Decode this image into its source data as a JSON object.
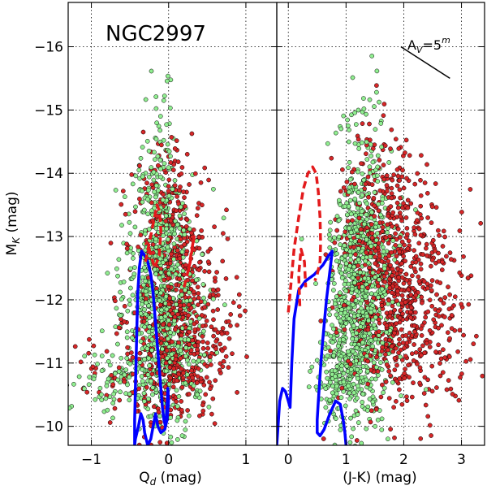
{
  "chart_data": [
    {
      "type": "scatter",
      "title": "NGC2997",
      "xlabel": "Q",
      "xlabel_sub": "d",
      "xlabel_unit": " (mag)",
      "ylabel": "M",
      "ylabel_sub": "K",
      "ylabel_unit": " (mag)",
      "xlim": [
        -1.3,
        1.4
      ],
      "ylim": [
        -9.7,
        -16.7
      ],
      "x_ticks": [
        -1,
        0,
        1
      ],
      "x_tick_labels": [
        "−1",
        "0",
        "1"
      ],
      "y_ticks": [
        -10,
        -11,
        -12,
        -13,
        -14,
        -15,
        -16
      ],
      "y_tick_labels": [
        "−10",
        "−11",
        "−12",
        "−13",
        "−14",
        "−15",
        "−16"
      ],
      "grid": true,
      "grid_style": "dotted",
      "series": [
        {
          "color": "#90ee90",
          "marker": "circle",
          "clusters": [
            {
              "cx": -0.05,
              "cy": -11.7,
              "sx": 0.28,
              "sy": 0.8,
              "n": 500
            },
            {
              "cx": -0.12,
              "cy": -12.8,
              "sx": 0.18,
              "sy": 0.7,
              "n": 230
            },
            {
              "cx": -0.15,
              "cy": -14.0,
              "sx": 0.12,
              "sy": 0.8,
              "n": 80
            },
            {
              "cx": -0.45,
              "cy": -10.8,
              "sx": 0.4,
              "sy": 0.35,
              "n": 130
            }
          ]
        },
        {
          "color": "#d62728",
          "marker": "circle",
          "clusters": [
            {
              "cx": 0.1,
              "cy": -11.5,
              "sx": 0.3,
              "sy": 0.8,
              "n": 430
            },
            {
              "cx": 0.05,
              "cy": -12.8,
              "sx": 0.25,
              "sy": 0.6,
              "n": 180
            },
            {
              "cx": 0.0,
              "cy": -13.8,
              "sx": 0.2,
              "sy": 0.6,
              "n": 60
            },
            {
              "cx": -0.4,
              "cy": -10.8,
              "sx": 0.4,
              "sy": 0.35,
              "n": 80
            },
            {
              "cx": 0.5,
              "cy": -11.2,
              "sx": 0.3,
              "sy": 0.4,
              "n": 50
            }
          ]
        }
      ],
      "lines": [
        {
          "color": "#0000ff",
          "style": "solid",
          "x": [
            -0.44,
            -0.44,
            -0.43,
            -0.42,
            -0.41,
            -0.4,
            -0.38,
            -0.35,
            -0.31,
            -0.27,
            -0.23,
            -0.2,
            -0.18,
            -0.16,
            -0.14,
            -0.12,
            -0.1,
            -0.08,
            -0.06,
            -0.04,
            -0.02,
            -0.01,
            0.0,
            -0.02,
            -0.05,
            -0.1,
            -0.14,
            -0.17,
            -0.2,
            -0.23,
            -0.27,
            -0.31,
            -0.33,
            -0.36,
            -0.39,
            -0.41,
            -0.43,
            -0.44
          ],
          "y": [
            -9.7,
            -10.1,
            -10.6,
            -11.1,
            -11.6,
            -12.1,
            -12.5,
            -12.77,
            -12.7,
            -12.6,
            -12.4,
            -12.1,
            -11.8,
            -11.5,
            -11.2,
            -10.9,
            -10.6,
            -10.3,
            -10.1,
            -10.0,
            -10.3,
            -10.6,
            -10.4,
            -10.1,
            -9.95,
            -9.9,
            -10.0,
            -10.2,
            -10.0,
            -9.8,
            -9.7,
            -9.9,
            -10.1,
            -10.2,
            -10.0,
            -9.9,
            -9.8,
            -9.7
          ]
        },
        {
          "color": "#e31a1c",
          "style": "dashed",
          "x": [
            -0.3,
            -0.25,
            -0.2,
            -0.15,
            -0.12,
            -0.1,
            -0.12,
            -0.18,
            -0.25,
            -0.3
          ],
          "y": [
            -12.6,
            -12.9,
            -13.2,
            -13.5,
            -13.4,
            -13.1,
            -12.7,
            -12.5,
            -12.8,
            -12.9
          ]
        },
        {
          "color": "#e31a1c",
          "style": "dashed",
          "x": [
            0.2,
            0.28,
            0.33,
            0.3,
            0.25
          ],
          "y": [
            -12.2,
            -12.6,
            -13.0,
            -12.8,
            -12.4
          ]
        }
      ]
    },
    {
      "type": "scatter",
      "xlabel": "(J-K) (mag)",
      "xlim": [
        -0.2,
        3.4
      ],
      "ylim": [
        -9.7,
        -16.7
      ],
      "x_ticks": [
        0,
        1,
        2,
        3
      ],
      "x_tick_labels": [
        "0",
        "1",
        "2",
        "3"
      ],
      "grid": true,
      "grid_style": "dotted",
      "annotation": {
        "text": "A",
        "sub": "V",
        "mid": "=5",
        "sup": "m",
        "x1": 1.95,
        "y1": -16.0,
        "x2": 2.8,
        "y2": -15.5
      },
      "series": [
        {
          "color": "#90ee90",
          "marker": "circle",
          "clusters": [
            {
              "cx": 1.25,
              "cy": -11.6,
              "sx": 0.3,
              "sy": 0.8,
              "n": 560
            },
            {
              "cx": 1.25,
              "cy": -12.8,
              "sx": 0.25,
              "sy": 0.6,
              "n": 230
            },
            {
              "cx": 1.3,
              "cy": -14.0,
              "sx": 0.2,
              "sy": 0.7,
              "n": 90
            },
            {
              "cx": 0.9,
              "cy": -10.9,
              "sx": 0.25,
              "sy": 0.3,
              "n": 120
            }
          ]
        },
        {
          "color": "#d62728",
          "marker": "circle",
          "clusters": [
            {
              "cx": 1.7,
              "cy": -11.8,
              "sx": 0.4,
              "sy": 0.8,
              "n": 420
            },
            {
              "cx": 1.8,
              "cy": -12.8,
              "sx": 0.45,
              "sy": 0.7,
              "n": 220
            },
            {
              "cx": 1.6,
              "cy": -13.8,
              "sx": 0.35,
              "sy": 0.6,
              "n": 90
            },
            {
              "cx": 2.5,
              "cy": -12.0,
              "sx": 0.35,
              "sy": 0.6,
              "n": 110
            },
            {
              "cx": 2.6,
              "cy": -11.0,
              "sx": 0.4,
              "sy": 0.4,
              "n": 40
            }
          ]
        }
      ],
      "lines": [
        {
          "color": "#0000ff",
          "style": "solid",
          "x": [
            -0.2,
            -0.15,
            -0.1,
            -0.05,
            0.0,
            0.03,
            0.06,
            0.1,
            0.18,
            0.3,
            0.45,
            0.6,
            0.7,
            0.76,
            0.74,
            0.7,
            0.66,
            0.62,
            0.58,
            0.55,
            0.52,
            0.5,
            0.5,
            0.55,
            0.62,
            0.72,
            0.82,
            0.9,
            0.95,
            0.98,
            1.0
          ],
          "y": [
            -9.7,
            -10.4,
            -10.6,
            -10.55,
            -10.4,
            -10.3,
            -11.0,
            -11.7,
            -12.15,
            -12.3,
            -12.4,
            -12.55,
            -12.7,
            -12.77,
            -12.6,
            -12.3,
            -12.0,
            -11.6,
            -11.2,
            -10.8,
            -10.4,
            -10.1,
            -9.9,
            -9.85,
            -9.95,
            -10.2,
            -10.4,
            -10.35,
            -10.1,
            -9.9,
            -9.7
          ]
        },
        {
          "color": "#e31a1c",
          "style": "dashed",
          "x": [
            0.0,
            0.05,
            0.1,
            0.18,
            0.26,
            0.34,
            0.42,
            0.48,
            0.52,
            0.55,
            0.56,
            0.55,
            0.5,
            0.46
          ],
          "y": [
            -11.8,
            -12.3,
            -12.8,
            -13.3,
            -13.75,
            -14.0,
            -14.1,
            -14.0,
            -13.7,
            -13.3,
            -12.9,
            -12.6,
            -12.4,
            -12.3
          ]
        },
        {
          "color": "#e31a1c",
          "style": "dashed",
          "x": [
            0.2,
            0.18,
            0.22,
            0.28,
            0.3
          ],
          "y": [
            -11.9,
            -12.4,
            -12.8,
            -12.6,
            -12.2
          ]
        }
      ]
    }
  ]
}
